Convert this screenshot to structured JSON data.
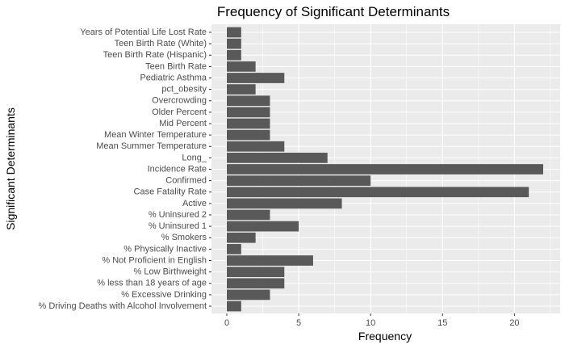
{
  "chart_data": {
    "type": "bar",
    "orientation": "horizontal",
    "title": "Frequency of Significant Determinants",
    "xlabel": "Frequency",
    "ylabel": "Significant Determinants",
    "xlim": [
      0,
      23
    ],
    "x_ticks": [
      0,
      5,
      10,
      15,
      20
    ],
    "grid": true,
    "bar_color": "#595959",
    "panel_color": "#ebebeb",
    "categories": [
      "% Driving Deaths with Alcohol Involvement",
      "% Excessive Drinking",
      "% less than 18 years of age",
      "% Low Birthweight",
      "% Not Proficient in English",
      "% Physically Inactive",
      "% Smokers",
      "% Uninsured 1",
      "% Uninsured 2",
      "Active",
      "Case Fatality Rate",
      "Confirmed",
      "Incidence Rate",
      "Long_",
      "Mean Summer Temperature",
      "Mean Winter Temperature",
      "Mid Percent",
      "Older Percent",
      "Overcrowding",
      "pct_obesity",
      "Pediatric Asthma",
      "Teen Birth Rate",
      "Teen Birth Rate (Hispanic)",
      "Teen Birth Rate (White)",
      "Years of Potential Life Lost Rate"
    ],
    "values": [
      1,
      3,
      4,
      4,
      6,
      1,
      2,
      5,
      3,
      8,
      21,
      10,
      22,
      7,
      4,
      3,
      3,
      3,
      3,
      2,
      4,
      2,
      1,
      1,
      1
    ]
  }
}
